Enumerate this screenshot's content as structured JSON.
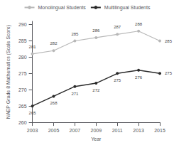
{
  "chart_data": {
    "type": "line",
    "xlabel": "Year",
    "ylabel": "NAEP Grade 8 Mathematics (Scale Score)",
    "x": [
      2003,
      2005,
      2007,
      2009,
      2011,
      2013,
      2015
    ],
    "series": [
      {
        "name": "Monolingual Students",
        "color": "#b8b8b8",
        "marker": "circle",
        "values": [
          281,
          282,
          285,
          286,
          287,
          288,
          285
        ]
      },
      {
        "name": "Multilingual Students",
        "color": "#2a2a2a",
        "marker": "circle",
        "values": [
          265,
          268,
          271,
          272,
          275,
          276,
          275
        ]
      }
    ],
    "xlim": [
      2003,
      2015
    ],
    "xticks": [
      2003,
      2005,
      2007,
      2009,
      2011,
      2013,
      2015
    ],
    "ylim": [
      260,
      291
    ],
    "yticks": [
      260,
      265,
      270,
      275,
      280,
      285,
      290
    ],
    "grid": false,
    "legend": "top",
    "data_labels": true
  }
}
